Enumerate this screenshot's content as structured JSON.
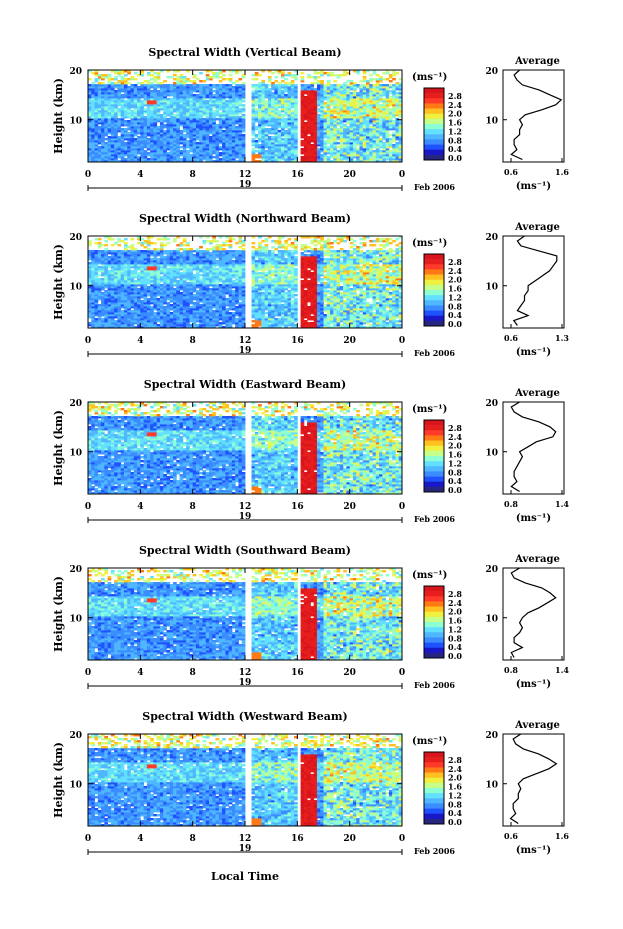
{
  "figure": {
    "xaxis_label": "Local Time",
    "date_label": "Feb 2006",
    "day_label": "19"
  },
  "colors": {
    "scale": [
      "#262680",
      "#1818c8",
      "#1f52ff",
      "#3a8cff",
      "#4fb7ff",
      "#63e0ff",
      "#8effd2",
      "#c6ff8a",
      "#f0f040",
      "#ffc020",
      "#ff7a14",
      "#ff3a28",
      "#e61e1e",
      "#d8141c"
    ],
    "missing": "#ffffff"
  },
  "chart_data": [
    {
      "type": "heatmap",
      "title": "Spectral Width (Vertical Beam)",
      "ylabel": "Height (km)",
      "x_ticks": [
        "0",
        "4",
        "8",
        "12",
        "16",
        "20",
        "0"
      ],
      "y_ticks": [
        "20",
        "10"
      ],
      "xlim": [
        0,
        24
      ],
      "ylim": [
        1.5,
        20
      ],
      "colorbar": {
        "unit": "(ms⁻¹)",
        "ticks": [
          "2.8",
          "2.4",
          "2.0",
          "1.6",
          "1.2",
          "0.8",
          "0.4",
          "0.0"
        ]
      },
      "gaps": [
        [
          11.9,
          12.4
        ],
        [
          16.1,
          16.2
        ],
        [
          17.2,
          17.3
        ]
      ],
      "profile": {
        "title": "Average",
        "unit": "(ms⁻¹)",
        "x_ticks": [
          "0.6",
          "1.6"
        ],
        "y_ticks": [
          "20",
          "10"
        ],
        "xlim": [
          0.5,
          1.6
        ],
        "heights": [
          2,
          3,
          4,
          5,
          6,
          7,
          8,
          9,
          10,
          11,
          12,
          13,
          14,
          15,
          16,
          17,
          18,
          19,
          20
        ],
        "values": [
          0.85,
          0.65,
          0.75,
          0.7,
          0.7,
          0.8,
          0.8,
          0.85,
          0.8,
          0.9,
          1.2,
          1.45,
          1.55,
          1.35,
          1.15,
          0.85,
          0.75,
          0.7,
          0.8
        ]
      }
    },
    {
      "type": "heatmap",
      "title": "Spectral Width (Northward Beam)",
      "ylabel": "Height (km)",
      "x_ticks": [
        "0",
        "4",
        "8",
        "12",
        "16",
        "20",
        "0"
      ],
      "y_ticks": [
        "20",
        "10"
      ],
      "xlim": [
        0,
        24
      ],
      "ylim": [
        1.5,
        20
      ],
      "colorbar": {
        "unit": "(ms⁻¹)",
        "ticks": [
          "2.8",
          "2.4",
          "2.0",
          "1.6",
          "1.2",
          "0.8",
          "0.4",
          "0.0"
        ]
      },
      "gaps": [
        [
          11.9,
          12.4
        ],
        [
          16.1,
          16.2
        ],
        [
          17.2,
          17.3
        ]
      ],
      "profile": {
        "title": "Average",
        "unit": "(ms⁻¹)",
        "x_ticks": [
          "0.6",
          "1.3"
        ],
        "y_ticks": [
          "20",
          "10"
        ],
        "xlim": [
          0.5,
          1.35
        ],
        "heights": [
          2,
          3,
          4,
          5,
          6,
          7,
          8,
          9,
          10,
          11,
          12,
          13,
          14,
          15,
          16,
          17,
          18,
          19,
          20
        ],
        "values": [
          0.7,
          0.65,
          0.85,
          0.7,
          0.75,
          0.8,
          0.8,
          0.85,
          0.85,
          0.95,
          1.05,
          1.15,
          1.2,
          1.25,
          1.25,
          1.0,
          0.75,
          0.7,
          0.8
        ]
      }
    },
    {
      "type": "heatmap",
      "title": "Spectral Width (Eastward Beam)",
      "ylabel": "Height (km)",
      "x_ticks": [
        "0",
        "4",
        "8",
        "12",
        "16",
        "20",
        "0"
      ],
      "y_ticks": [
        "20",
        "10"
      ],
      "xlim": [
        0,
        24
      ],
      "ylim": [
        1.5,
        20
      ],
      "colorbar": {
        "unit": "(ms⁻¹)",
        "ticks": [
          "2.8",
          "2.4",
          "2.0",
          "1.6",
          "1.2",
          "0.8",
          "0.4",
          "0.0"
        ]
      },
      "gaps": [
        [
          11.9,
          12.4
        ],
        [
          16.1,
          16.2
        ],
        [
          17.2,
          17.3
        ]
      ],
      "profile": {
        "title": "Average",
        "unit": "(ms⁻¹)",
        "x_ticks": [
          "0.8",
          "1.4"
        ],
        "y_ticks": [
          "20",
          "10"
        ],
        "xlim": [
          0.5,
          1.6
        ],
        "heights": [
          2,
          3,
          4,
          5,
          6,
          7,
          8,
          9,
          10,
          11,
          12,
          13,
          14,
          15,
          16,
          17,
          18,
          19,
          20
        ],
        "values": [
          0.8,
          0.65,
          0.75,
          0.7,
          0.7,
          0.75,
          0.8,
          0.85,
          0.8,
          0.95,
          1.1,
          1.4,
          1.45,
          1.35,
          1.15,
          0.85,
          0.7,
          0.65,
          0.8
        ]
      }
    },
    {
      "type": "heatmap",
      "title": "Spectral Width (Southward Beam)",
      "ylabel": "Height (km)",
      "x_ticks": [
        "0",
        "4",
        "8",
        "12",
        "16",
        "20",
        "0"
      ],
      "y_ticks": [
        "20",
        "10"
      ],
      "xlim": [
        0,
        24
      ],
      "ylim": [
        1.5,
        20
      ],
      "colorbar": {
        "unit": "(ms⁻¹)",
        "ticks": [
          "2.8",
          "2.4",
          "2.0",
          "1.6",
          "1.2",
          "0.8",
          "0.4",
          "0.0"
        ]
      },
      "gaps": [
        [
          11.9,
          12.4
        ],
        [
          16.1,
          16.2
        ],
        [
          17.2,
          17.3
        ]
      ],
      "profile": {
        "title": "Average",
        "unit": "(ms⁻¹)",
        "x_ticks": [
          "0.8",
          "1.4"
        ],
        "y_ticks": [
          "20",
          "10"
        ],
        "xlim": [
          0.5,
          1.6
        ],
        "heights": [
          2,
          3,
          4,
          5,
          6,
          7,
          8,
          9,
          10,
          11,
          12,
          13,
          14,
          15,
          16,
          17,
          18,
          19,
          20
        ],
        "values": [
          0.7,
          0.65,
          0.85,
          0.7,
          0.7,
          0.8,
          0.85,
          0.8,
          0.85,
          0.95,
          1.15,
          1.3,
          1.45,
          1.35,
          1.2,
          0.9,
          0.7,
          0.65,
          0.8
        ]
      }
    },
    {
      "type": "heatmap",
      "title": "Spectral Width (Westward Beam)",
      "ylabel": "Height (km)",
      "x_ticks": [
        "0",
        "4",
        "8",
        "12",
        "16",
        "20",
        "0"
      ],
      "y_ticks": [
        "20",
        "10"
      ],
      "xlim": [
        0,
        24
      ],
      "ylim": [
        1.5,
        20
      ],
      "colorbar": {
        "unit": "(ms⁻¹)",
        "ticks": [
          "2.8",
          "2.4",
          "2.0",
          "1.6",
          "1.2",
          "0.8",
          "0.4",
          "0.0"
        ]
      },
      "gaps": [
        [
          11.9,
          12.4
        ],
        [
          16.1,
          16.2
        ],
        [
          17.2,
          17.3
        ]
      ],
      "profile": {
        "title": "Average",
        "unit": "(ms⁻¹)",
        "x_ticks": [
          "0.6",
          "1.6"
        ],
        "y_ticks": [
          "20",
          "10"
        ],
        "xlim": [
          0.5,
          1.7
        ],
        "heights": [
          2,
          3,
          4,
          5,
          6,
          7,
          8,
          9,
          10,
          11,
          12,
          13,
          14,
          15,
          16,
          17,
          18,
          19,
          20
        ],
        "values": [
          0.8,
          0.65,
          0.75,
          0.7,
          0.7,
          0.8,
          0.8,
          0.85,
          0.8,
          0.9,
          1.15,
          1.4,
          1.55,
          1.4,
          1.2,
          0.9,
          0.75,
          0.7,
          0.85
        ]
      }
    }
  ]
}
